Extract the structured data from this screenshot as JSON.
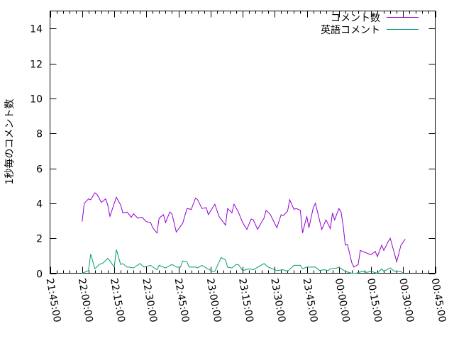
{
  "chart_data": {
    "type": "line",
    "title": "",
    "xlabel": "",
    "ylabel": "1秒毎のコメント数",
    "ylim": [
      0,
      15
    ],
    "xlim": [
      "21:45:00",
      "00:45:00"
    ],
    "y_ticks": [
      "0",
      "2",
      "4",
      "6",
      "8",
      "10",
      "12",
      "14"
    ],
    "x_ticks": [
      "21:45:00",
      "22:00:00",
      "22:15:00",
      "22:30:00",
      "22:45:00",
      "23:00:00",
      "23:15:00",
      "23:30:00",
      "23:45:00",
      "00:00:00",
      "00:15:00",
      "00:30:00",
      "00:45:00"
    ],
    "grid": false,
    "legend_position": "top-right",
    "series": [
      {
        "name": "コメント数",
        "color": "#9400d3",
        "x": [
          "22:00",
          "22:01",
          "22:03",
          "22:04",
          "22:06",
          "22:07",
          "22:09",
          "22:11",
          "22:12",
          "22:13",
          "22:16",
          "22:18",
          "22:19",
          "22:21",
          "22:23",
          "22:24",
          "22:26",
          "22:28",
          "22:30",
          "22:32",
          "22:33",
          "22:35",
          "22:36",
          "22:38",
          "22:39",
          "22:41",
          "22:42",
          "22:44",
          "22:47",
          "22:49",
          "22:51",
          "22:53",
          "22:54",
          "22:56",
          "22:58",
          "22:59",
          "23:02",
          "23:04",
          "23:07",
          "23:08",
          "23:10",
          "23:11",
          "23:13",
          "23:15",
          "23:17",
          "23:19",
          "23:20",
          "23:22",
          "23:24",
          "23:25",
          "23:26",
          "23:28",
          "23:31",
          "23:33",
          "23:34",
          "23:36",
          "23:37",
          "23:39",
          "23:40",
          "23:42",
          "23:43",
          "23:45",
          "23:46",
          "23:48",
          "23:49",
          "23:52",
          "23:54",
          "23:56",
          "23:57",
          "23:58",
          "00:00",
          "00:01",
          "00:02",
          "00:03",
          "00:04",
          "00:06",
          "00:07",
          "00:09",
          "00:10",
          "00:13",
          "00:15",
          "00:17",
          "00:18",
          "00:20",
          "00:21",
          "00:23",
          "00:24",
          "00:26",
          "00:27",
          "00:29",
          "00:31"
        ],
        "values": [
          2.95,
          4.0,
          4.25,
          4.2,
          4.6,
          4.5,
          4.05,
          4.25,
          3.9,
          3.25,
          4.35,
          3.9,
          3.45,
          3.5,
          3.2,
          3.4,
          3.15,
          3.2,
          2.95,
          2.9,
          2.6,
          2.3,
          3.15,
          3.35,
          2.9,
          3.5,
          3.4,
          2.35,
          2.85,
          3.7,
          3.65,
          4.3,
          4.2,
          3.7,
          3.75,
          3.35,
          3.95,
          3.25,
          2.75,
          3.7,
          3.45,
          3.95,
          3.5,
          2.9,
          2.5,
          3.1,
          3.05,
          2.5,
          2.95,
          3.15,
          3.6,
          3.35,
          2.6,
          3.35,
          3.3,
          3.55,
          4.2,
          3.65,
          3.7,
          3.6,
          2.3,
          3.25,
          2.6,
          3.75,
          4.0,
          2.5,
          3.05,
          2.55,
          3.45,
          3.05,
          3.7,
          3.5,
          2.7,
          1.6,
          1.65,
          0.6,
          0.35,
          0.5,
          1.3,
          1.15,
          1.05,
          1.25,
          0.95,
          1.6,
          1.3,
          1.8,
          2.0,
          1.1,
          0.65,
          1.6,
          1.95
        ]
      },
      {
        "name": "英語コメント",
        "color": "#009e73",
        "x": [
          "22:00",
          "22:03",
          "22:04",
          "22:06",
          "22:08",
          "22:10",
          "22:12",
          "22:13",
          "22:15",
          "22:16",
          "22:18",
          "22:19",
          "22:21",
          "22:22",
          "22:24",
          "22:27",
          "22:29",
          "22:32",
          "22:35",
          "22:36",
          "22:39",
          "22:42",
          "22:44",
          "22:46",
          "22:47",
          "22:49",
          "22:50",
          "22:53",
          "22:54",
          "22:56",
          "22:58",
          "23:01",
          "23:02",
          "23:05",
          "23:07",
          "23:08",
          "23:10",
          "23:12",
          "23:13",
          "23:15",
          "23:18",
          "23:20",
          "23:25",
          "23:27",
          "23:28",
          "23:31",
          "23:34",
          "23:36",
          "23:39",
          "23:42",
          "23:43",
          "23:45",
          "23:49",
          "23:51",
          "23:53",
          "23:55",
          "23:56",
          "23:59",
          "00:00",
          "00:03",
          "00:06",
          "00:08",
          "00:11",
          "00:13",
          "00:15",
          "00:18",
          "00:20",
          "00:21",
          "00:24",
          "00:26",
          "00:27",
          "00:29",
          "00:30"
        ],
        "values": [
          0,
          0.15,
          1.1,
          0.25,
          0.5,
          0.6,
          0.85,
          0.7,
          0.35,
          1.35,
          0.5,
          0.55,
          0.35,
          0.35,
          0.3,
          0.55,
          0.35,
          0.45,
          0.2,
          0.45,
          0.3,
          0.5,
          0.35,
          0.35,
          0.7,
          0.65,
          0.35,
          0.35,
          0.3,
          0.45,
          0.3,
          0.1,
          0.1,
          0.9,
          0.75,
          0.35,
          0.3,
          0.5,
          0.5,
          0.15,
          0.25,
          0.2,
          0.55,
          0.35,
          0.3,
          0.15,
          0.2,
          0.1,
          0.45,
          0.45,
          0.25,
          0.35,
          0.35,
          0.15,
          0.2,
          0.15,
          0.25,
          0.3,
          0.35,
          0.1,
          0,
          0,
          0.1,
          0.05,
          0.1,
          0,
          0.25,
          0.1,
          0.3,
          0.1,
          0.1,
          0.1,
          0
        ]
      }
    ]
  }
}
